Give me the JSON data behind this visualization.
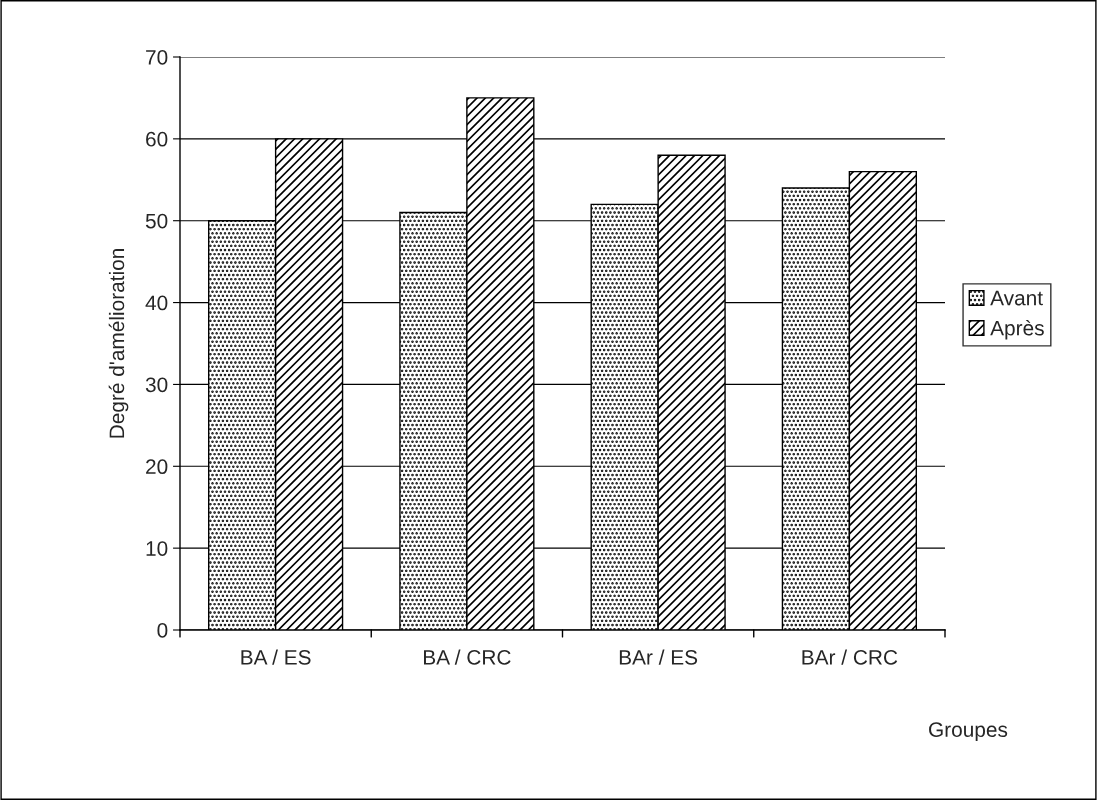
{
  "chart_data": {
    "type": "bar",
    "xlabel": "Groupes",
    "ylabel": "Degré d'amélioration",
    "categories": [
      "BA / ES",
      "BA / CRC",
      "BAr / ES",
      "BAr / CRC"
    ],
    "series": [
      {
        "name": "Avant",
        "color": "#000000",
        "values": [
          50,
          51,
          52,
          54
        ]
      },
      {
        "name": "Après",
        "color": "#000000",
        "values": [
          60,
          65,
          58,
          56
        ]
      }
    ],
    "ylim": [
      0,
      70
    ],
    "yticks": [
      0,
      10,
      20,
      30,
      40,
      50,
      60,
      70
    ],
    "grid": "y",
    "legend": "right"
  }
}
